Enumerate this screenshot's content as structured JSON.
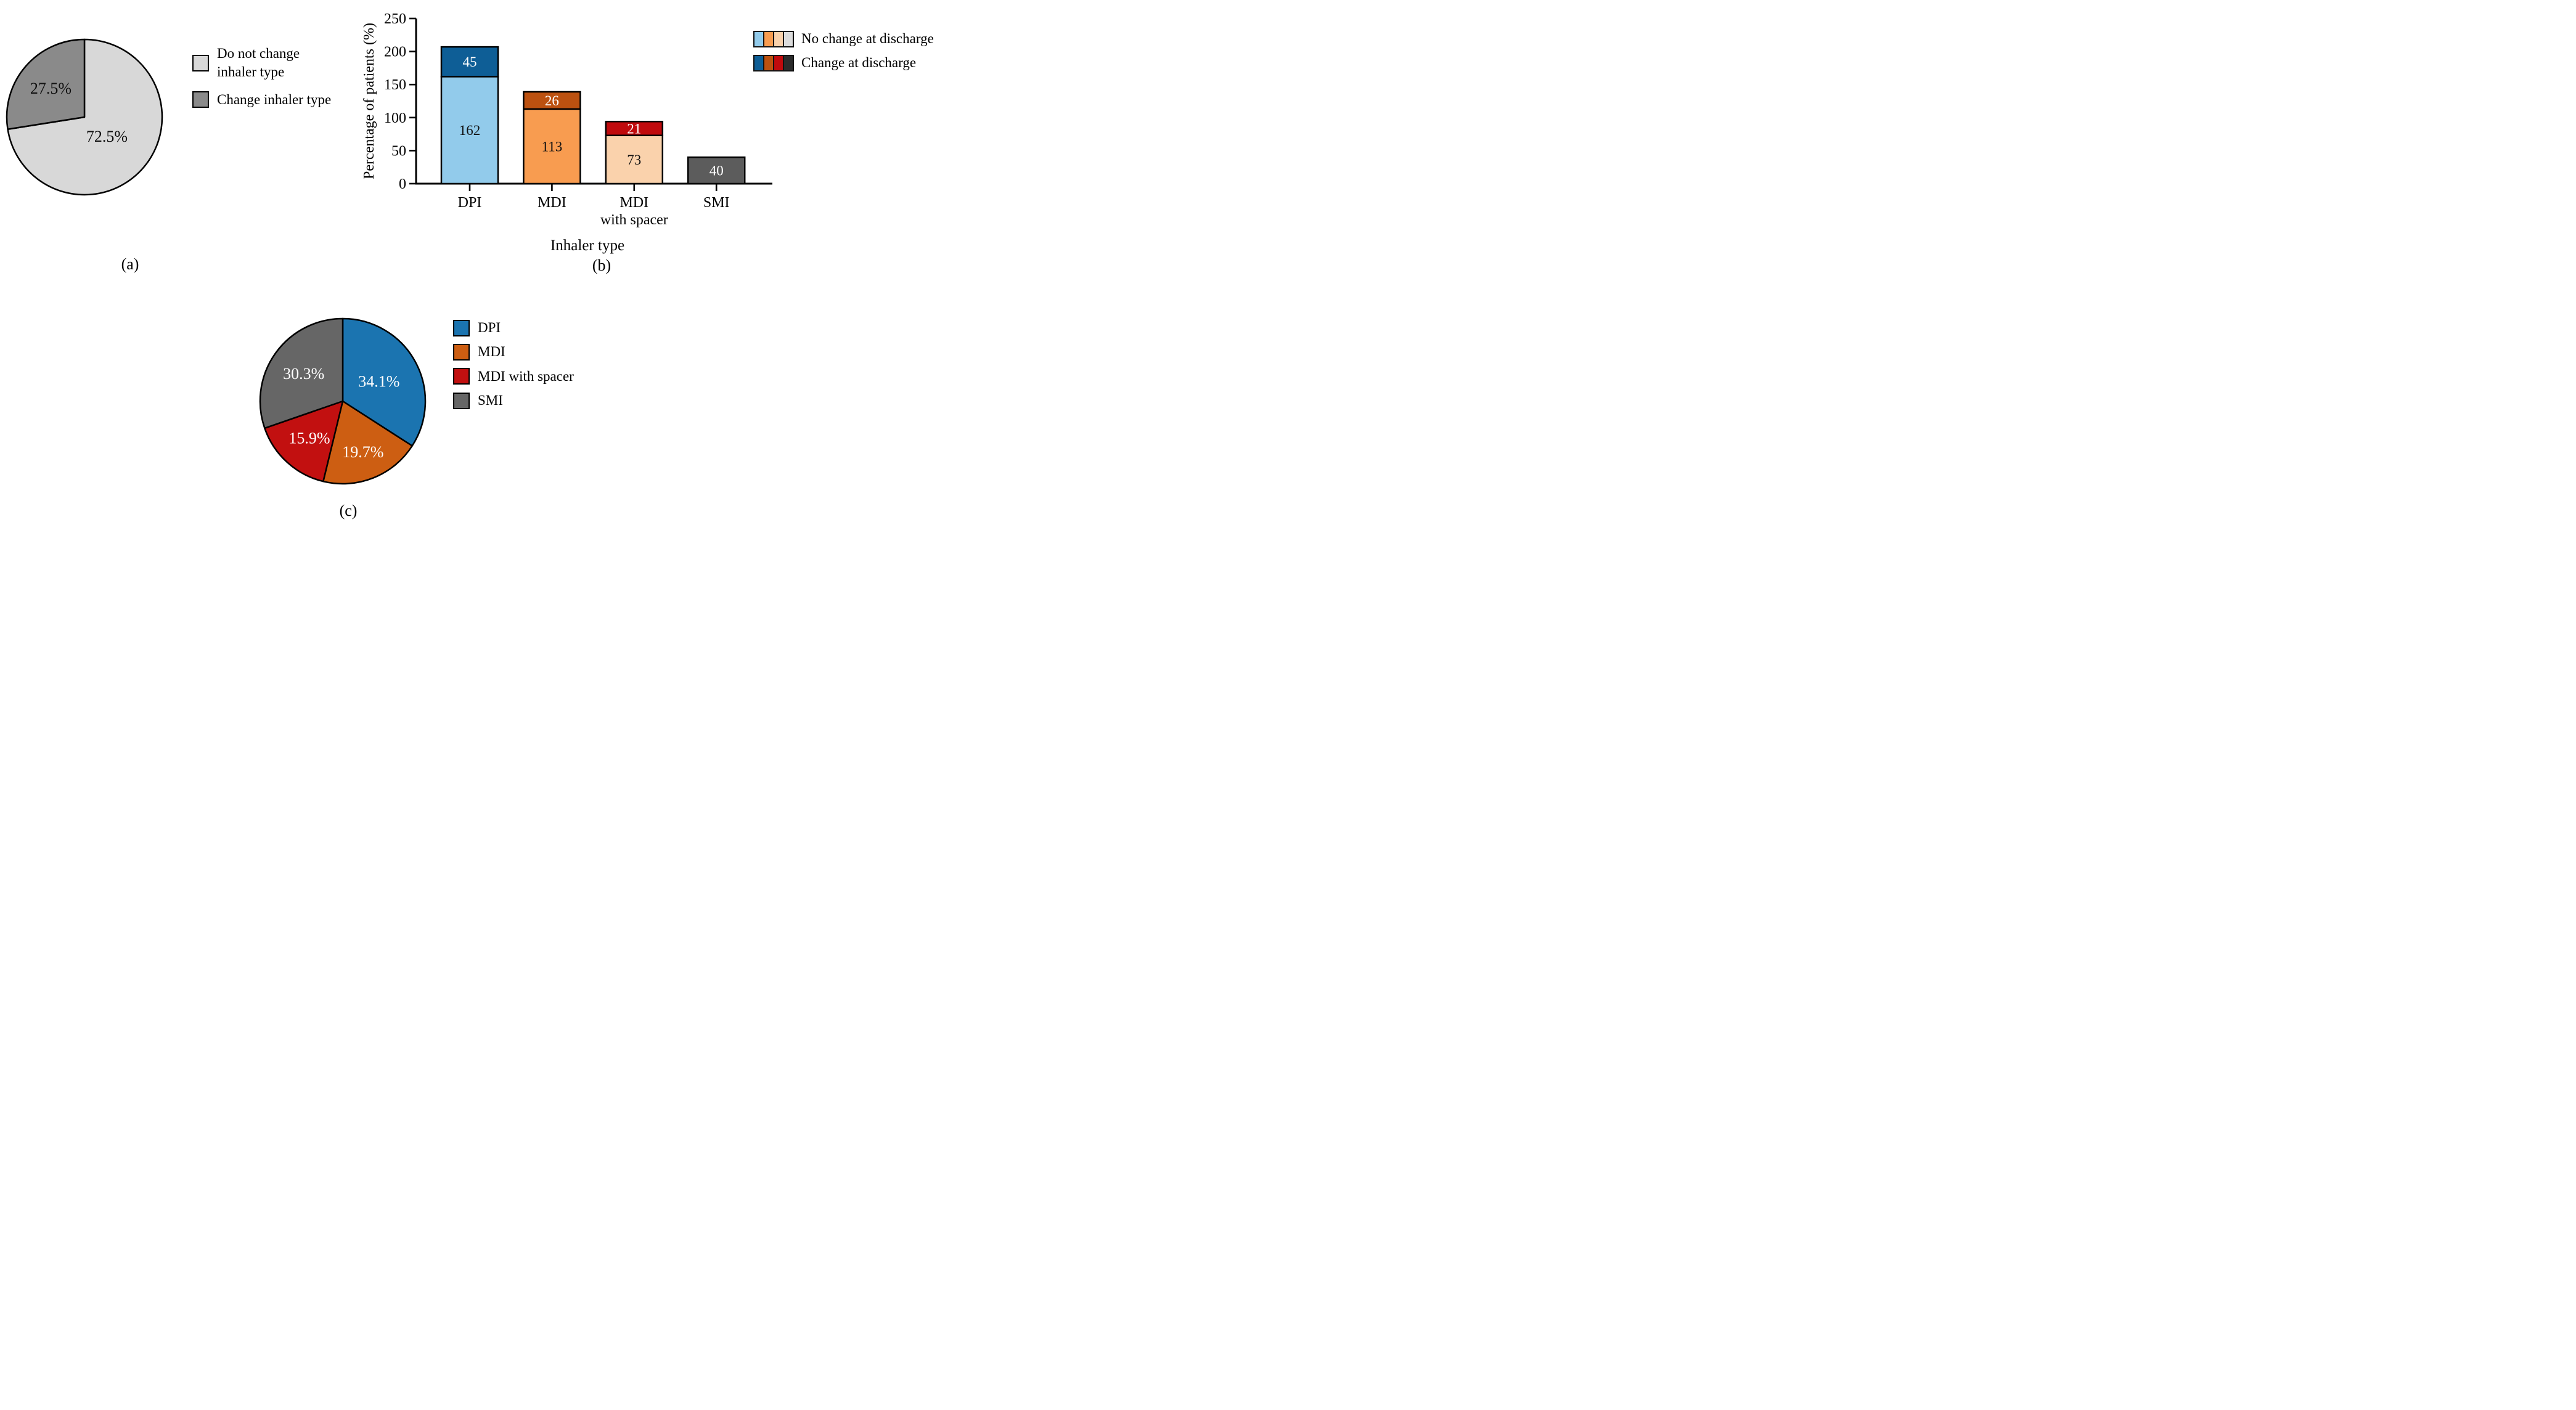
{
  "figure": {
    "background": "#ffffff",
    "text_color": "#000000"
  },
  "chart_data": [
    {
      "id": "pie_change_vs_no_change",
      "type": "pie",
      "panel": "(a)",
      "start_angle_deg": 0,
      "direction": "clockwise",
      "slices": [
        {
          "label": "Do not change inhaler type",
          "value_pct": 72.5,
          "display": "72.5%",
          "color": "#d8d8d8",
          "text_color": "#111111"
        },
        {
          "label": "Change inhaler type",
          "value_pct": 27.5,
          "display": "27.5%",
          "color": "#8a8a8a",
          "text_color": "#111111"
        }
      ],
      "legend": [
        {
          "label": "Do not change inhaler type",
          "color": "#d8d8d8"
        },
        {
          "label": "Change inhaler type",
          "color": "#8a8a8a"
        }
      ],
      "legend_position": "right"
    },
    {
      "id": "stacked_bar_inhaler_type",
      "type": "bar",
      "stacked": true,
      "panel": "(b)",
      "xlabel": "Inhaler type",
      "ylabel": "Percentage of patients (%)",
      "ylim": [
        0,
        250
      ],
      "yticks": [
        0,
        50,
        100,
        150,
        200,
        250
      ],
      "grid": false,
      "categories": [
        "DPI",
        "MDI",
        "MDI\nwith spacer",
        "SMI"
      ],
      "bars": [
        {
          "category": "DPI",
          "segments": [
            {
              "series": "No change at discharge",
              "value": 162,
              "label": "162",
              "color": "#92cbeb",
              "label_color": "#111111"
            },
            {
              "series": "Change at discharge",
              "value": 45,
              "label": "45",
              "color": "#0e5e96",
              "label_color": "#ffffff"
            }
          ]
        },
        {
          "category": "MDI",
          "segments": [
            {
              "series": "No change at discharge",
              "value": 113,
              "label": "113",
              "color": "#f89c50",
              "label_color": "#111111"
            },
            {
              "series": "Change at discharge",
              "value": 26,
              "label": "26",
              "color": "#bc5110",
              "label_color": "#ffffff"
            }
          ]
        },
        {
          "category": "MDI\nwith spacer",
          "segments": [
            {
              "series": "No change at discharge",
              "value": 73,
              "label": "73",
              "color": "#fad2ac",
              "label_color": "#111111"
            },
            {
              "series": "Change at discharge",
              "value": 21,
              "label": "21",
              "color": "#c00a0d",
              "label_color": "#ffffff"
            }
          ]
        },
        {
          "category": "SMI",
          "segments": [
            {
              "series": null,
              "value": 40,
              "label": "40",
              "color": "#5c5c5c",
              "label_color": "#ffffff"
            }
          ]
        }
      ],
      "legend": [
        {
          "label": "No change at discharge",
          "swatch_colors": [
            "#92cbeb",
            "#f89c50",
            "#fad2ac",
            "#dcdcdc"
          ]
        },
        {
          "label": "Change at discharge",
          "swatch_colors": [
            "#0e5e96",
            "#bc5110",
            "#c00a0d",
            "#2b2b2b"
          ]
        }
      ],
      "legend_position": "top-right"
    },
    {
      "id": "pie_inhaler_type_distribution",
      "type": "pie",
      "panel": "(c)",
      "start_angle_deg": 0,
      "direction": "clockwise",
      "slices": [
        {
          "label": "DPI",
          "value_pct": 34.1,
          "display": "34.1%",
          "color": "#1b74b0",
          "text_color": "#ffffff"
        },
        {
          "label": "MDI",
          "value_pct": 19.7,
          "display": "19.7%",
          "color": "#cd5e12",
          "text_color": "#ffffff"
        },
        {
          "label": "MDI with spacer",
          "value_pct": 15.9,
          "display": "15.9%",
          "color": "#c21010",
          "text_color": "#ffffff"
        },
        {
          "label": "SMI",
          "value_pct": 30.3,
          "display": "30.3%",
          "color": "#666666",
          "text_color": "#ffffff"
        }
      ],
      "legend": [
        {
          "label": "DPI",
          "color": "#1b74b0"
        },
        {
          "label": "MDI",
          "color": "#cd5e12"
        },
        {
          "label": "MDI with spacer",
          "color": "#c21010"
        },
        {
          "label": "SMI",
          "color": "#666666"
        }
      ],
      "legend_position": "right"
    }
  ]
}
